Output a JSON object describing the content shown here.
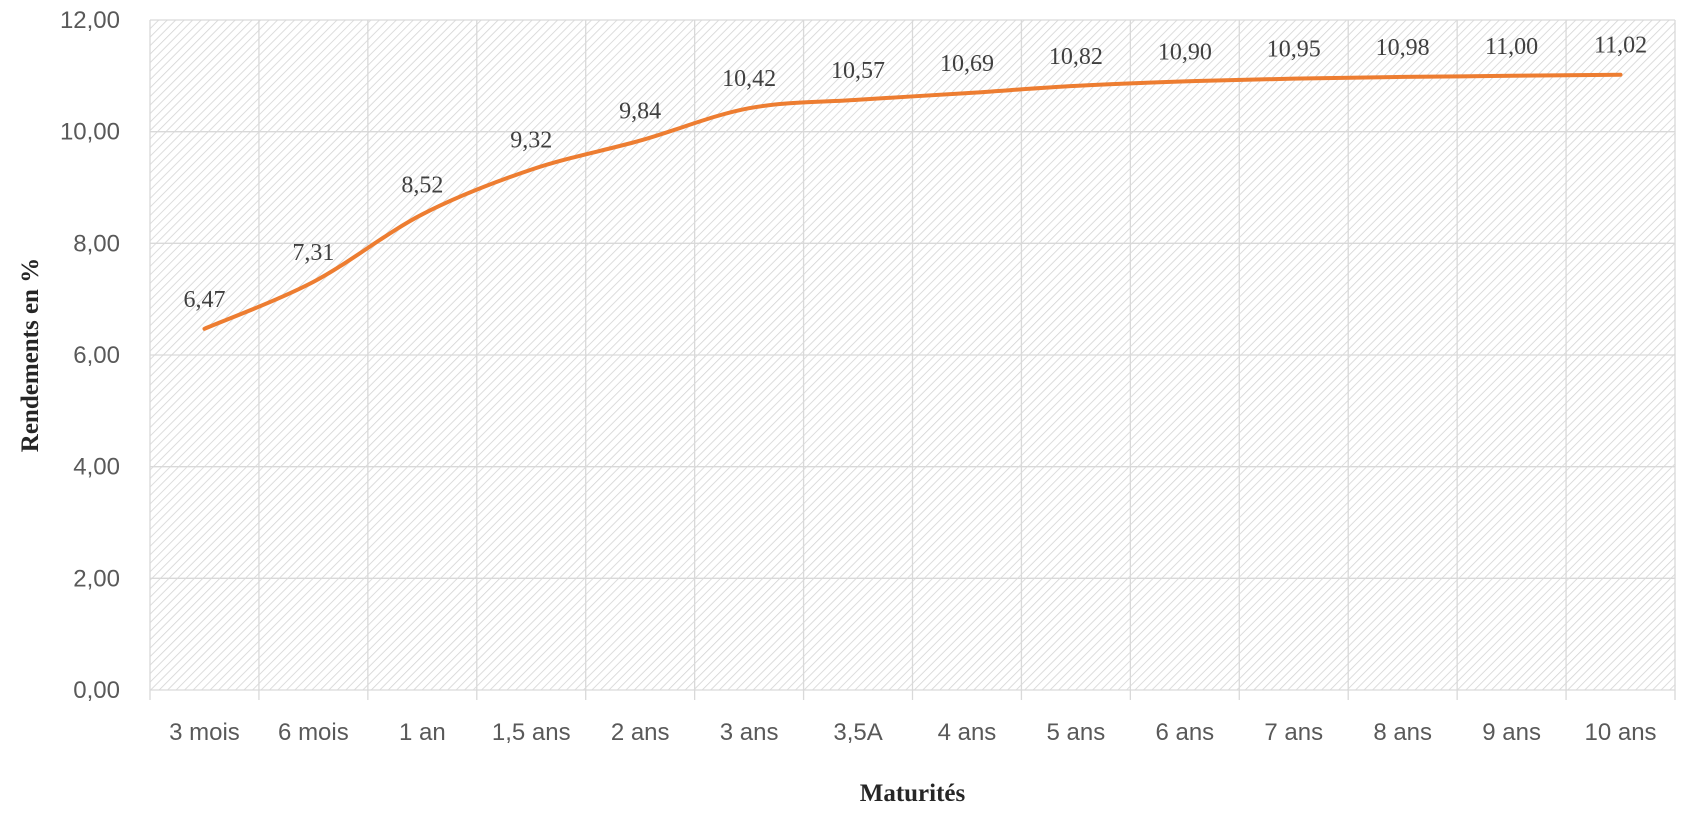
{
  "chart_data": {
    "type": "line",
    "title": "",
    "xlabel": "Maturités",
    "ylabel": "Rendements en %",
    "categories": [
      "3 mois",
      "6 mois",
      "1 an",
      "1,5 ans",
      "2 ans",
      "3 ans",
      "3,5A",
      "4 ans",
      "5 ans",
      "6 ans",
      "7 ans",
      "8 ans",
      "9 ans",
      "10 ans"
    ],
    "series": [
      {
        "values": [
          6.47,
          7.31,
          8.52,
          9.32,
          9.84,
          10.42,
          10.57,
          10.69,
          10.82,
          10.9,
          10.95,
          10.98,
          11.0,
          11.02
        ],
        "labels": [
          "6,47",
          "7,31",
          "8,52",
          "9,32",
          "9,84",
          "10,42",
          "10,57",
          "10,69",
          "10,82",
          "10,90",
          "10,95",
          "10,98",
          "11,00",
          "11,02"
        ],
        "color": "#ED7D31",
        "smooth": true
      }
    ],
    "ylim": [
      0,
      12
    ],
    "yticks": [
      0,
      2,
      4,
      6,
      8,
      10,
      12
    ],
    "ytick_labels": [
      "0,00",
      "2,00",
      "4,00",
      "6,00",
      "8,00",
      "10,00",
      "12,00"
    ],
    "grid": true,
    "plot_background": "hatched",
    "gridline_color": "#D9D9D9",
    "legend": "none"
  }
}
